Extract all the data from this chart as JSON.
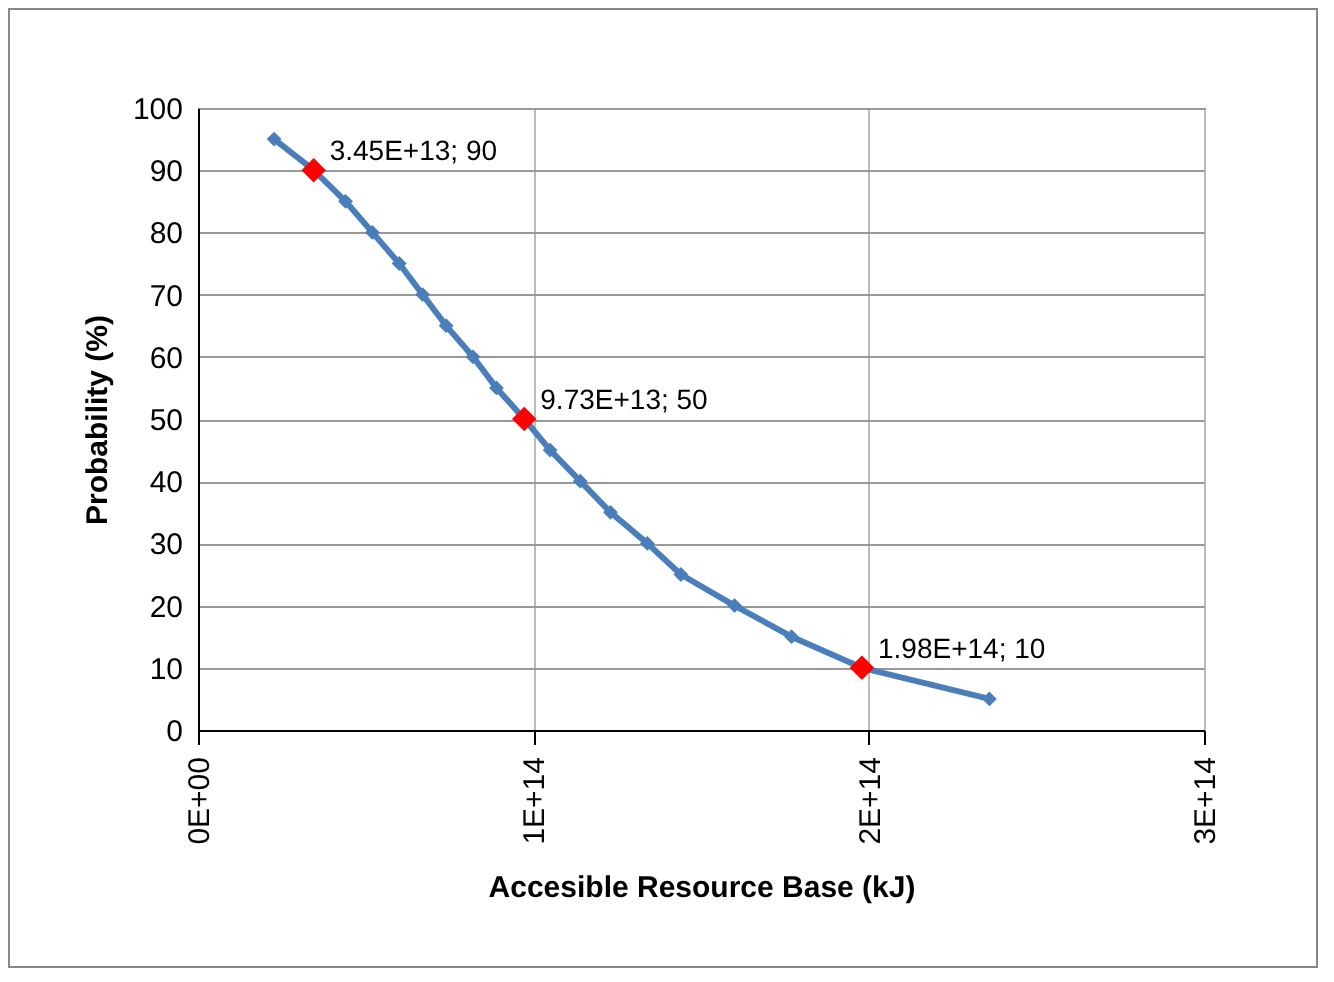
{
  "chart_data": {
    "type": "line",
    "xlabel": "Accesible Resource Base (kJ)",
    "ylabel": "Probability (%)",
    "xlim": [
      0,
      300000000000000.0
    ],
    "xticks": [
      {
        "value": 0,
        "label": "0E+00"
      },
      {
        "value": 100000000000000.0,
        "label": "1E+14"
      },
      {
        "value": 200000000000000.0,
        "label": "2E+14"
      },
      {
        "value": 300000000000000.0,
        "label": "3E+14"
      }
    ],
    "ylim": [
      0,
      100
    ],
    "yticks": [
      0,
      10,
      20,
      30,
      40,
      50,
      60,
      70,
      80,
      90,
      100
    ],
    "grid": true,
    "marker": "diamond",
    "line_style": "solid",
    "series": [
      {
        "type": "line",
        "color": "#4a7ebb",
        "x": [
          22700000000000.0,
          34500000000000.0,
          44000000000000.0,
          52000000000000.0,
          60000000000000.0,
          67000000000000.0,
          74000000000000.0,
          82000000000000.0,
          89000000000000.0,
          97300000000000.0,
          105000000000000.0,
          114000000000000.0,
          123000000000000.0,
          134000000000000.0,
          144000000000000.0,
          160000000000000.0,
          177000000000000.0,
          198000000000000.0,
          236000000000000.0
        ],
        "values": [
          95,
          90,
          85,
          80,
          75,
          70,
          65,
          60,
          55,
          50,
          45,
          40,
          35,
          30,
          25,
          20,
          15,
          10,
          5
        ]
      },
      {
        "type": "scatter",
        "color": "#ff0000",
        "x": [
          34500000000000.0,
          97300000000000.0,
          198000000000000.0
        ],
        "values": [
          90,
          50,
          10
        ]
      }
    ],
    "annotations": [
      {
        "text": "3.45E+13; 90",
        "x": 34500000000000.0,
        "y": 90
      },
      {
        "text": "9.73E+13; 50",
        "x": 97300000000000.0,
        "y": 50
      },
      {
        "text": "1.98E+14; 10",
        "x": 198000000000000.0,
        "y": 10
      }
    ]
  }
}
